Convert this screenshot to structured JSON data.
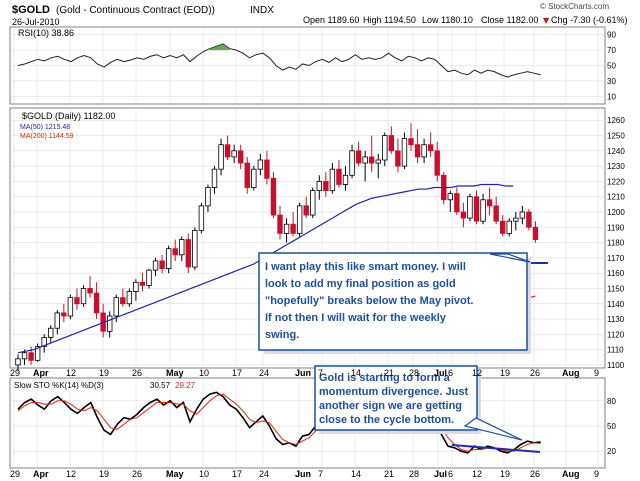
{
  "header": {
    "symbol": "$GOLD",
    "name": "(Gold - Continuous Contract (EOD))",
    "exchange": "INDX",
    "date": "26-Jul-2010",
    "quote_open": "Open 1189.60",
    "quote_high": "High 1194.50",
    "quote_low": "Low 1180.10",
    "quote_close": "Close 1182.00",
    "quote_chg": "Chg -7.30 (-0.61%)",
    "chg_arrow": "▼",
    "watermark": "© StockCharts.com"
  },
  "colors": {
    "bg": "#ffffff",
    "panel_border": "#808080",
    "grid": "#d8d8d8",
    "up_candle": "#000000",
    "down_candle": "#c8102e",
    "ma50": "#2222aa",
    "ma200": "#d42a1a",
    "callout_border": "#1f4e9a",
    "trend_line": "#1f2fa8"
  },
  "rsi_panel": {
    "label": "RSI(10) 38.86",
    "ticks": [
      "90",
      "70",
      "50",
      "30",
      "10"
    ]
  },
  "price_panel": {
    "label": "$GOLD (Daily) 1182.00",
    "ma50_label": "MA(50) 1215.48",
    "ma200_label": "MA(200) 1144.59",
    "ticks": [
      "1260",
      "1250",
      "1240",
      "1230",
      "1220",
      "1210",
      "1200",
      "1190",
      "1180",
      "1170",
      "1160",
      "1150",
      "1140",
      "1130",
      "1120",
      "1110",
      "1100"
    ]
  },
  "x_axis": {
    "labels": [
      "29",
      "Apr",
      "12",
      "19",
      "26",
      "May",
      "10",
      "17",
      "24",
      "Jun",
      "7",
      "14",
      "21",
      "28",
      "Jul",
      "6",
      "12",
      "19",
      "26",
      "Aug",
      "9"
    ]
  },
  "sto_panel": {
    "label": "Slow STO %K(14) %D(3)",
    "k_value": "30.57",
    "d_value": "29.27",
    "ticks": [
      "80",
      "50",
      "20"
    ]
  },
  "annotations": {
    "callout1": [
      "I want play this like smart money. I will",
      "look to add my final position as gold",
      "\"hopefully\" breaks below the May pivot.",
      "If not then I will wait for the weekly",
      "swing."
    ],
    "callout2": [
      "Gold is starting to form a",
      "momentum divergence. Just",
      "another sign we are getting",
      "close to the cycle bottom."
    ]
  },
  "chart_data": {
    "type": "candlestick",
    "title": "$GOLD (Gold - Continuous Contract (EOD)) INDX",
    "ylim": [
      1100,
      1268
    ],
    "candles": [
      {
        "o": 1100,
        "h": 1107,
        "l": 1096,
        "c": 1104
      },
      {
        "o": 1104,
        "h": 1110,
        "l": 1100,
        "c": 1108
      },
      {
        "o": 1108,
        "h": 1112,
        "l": 1100,
        "c": 1103
      },
      {
        "o": 1103,
        "h": 1114,
        "l": 1102,
        "c": 1112
      },
      {
        "o": 1112,
        "h": 1120,
        "l": 1108,
        "c": 1118
      },
      {
        "o": 1118,
        "h": 1126,
        "l": 1114,
        "c": 1124
      },
      {
        "o": 1124,
        "h": 1136,
        "l": 1120,
        "c": 1134
      },
      {
        "o": 1134,
        "h": 1140,
        "l": 1128,
        "c": 1132
      },
      {
        "o": 1132,
        "h": 1146,
        "l": 1130,
        "c": 1144
      },
      {
        "o": 1144,
        "h": 1150,
        "l": 1136,
        "c": 1140
      },
      {
        "o": 1140,
        "h": 1152,
        "l": 1138,
        "c": 1150
      },
      {
        "o": 1150,
        "h": 1158,
        "l": 1144,
        "c": 1147
      },
      {
        "o": 1147,
        "h": 1154,
        "l": 1130,
        "c": 1134
      },
      {
        "o": 1134,
        "h": 1140,
        "l": 1118,
        "c": 1122
      },
      {
        "o": 1122,
        "h": 1135,
        "l": 1118,
        "c": 1132
      },
      {
        "o": 1132,
        "h": 1146,
        "l": 1128,
        "c": 1144
      },
      {
        "o": 1144,
        "h": 1150,
        "l": 1138,
        "c": 1140
      },
      {
        "o": 1140,
        "h": 1150,
        "l": 1138,
        "c": 1148
      },
      {
        "o": 1148,
        "h": 1156,
        "l": 1142,
        "c": 1154
      },
      {
        "o": 1154,
        "h": 1160,
        "l": 1148,
        "c": 1152
      },
      {
        "o": 1152,
        "h": 1163,
        "l": 1150,
        "c": 1162
      },
      {
        "o": 1162,
        "h": 1170,
        "l": 1158,
        "c": 1168
      },
      {
        "o": 1168,
        "h": 1172,
        "l": 1160,
        "c": 1163
      },
      {
        "o": 1163,
        "h": 1178,
        "l": 1160,
        "c": 1176
      },
      {
        "o": 1176,
        "h": 1182,
        "l": 1168,
        "c": 1172
      },
      {
        "o": 1172,
        "h": 1184,
        "l": 1168,
        "c": 1182
      },
      {
        "o": 1182,
        "h": 1186,
        "l": 1160,
        "c": 1164
      },
      {
        "o": 1164,
        "h": 1190,
        "l": 1162,
        "c": 1188
      },
      {
        "o": 1188,
        "h": 1206,
        "l": 1186,
        "c": 1204
      },
      {
        "o": 1204,
        "h": 1218,
        "l": 1200,
        "c": 1216
      },
      {
        "o": 1216,
        "h": 1230,
        "l": 1212,
        "c": 1228
      },
      {
        "o": 1228,
        "h": 1248,
        "l": 1224,
        "c": 1244
      },
      {
        "o": 1244,
        "h": 1250,
        "l": 1234,
        "c": 1236
      },
      {
        "o": 1236,
        "h": 1244,
        "l": 1232,
        "c": 1240
      },
      {
        "o": 1240,
        "h": 1244,
        "l": 1228,
        "c": 1232
      },
      {
        "o": 1232,
        "h": 1236,
        "l": 1212,
        "c": 1216
      },
      {
        "o": 1216,
        "h": 1230,
        "l": 1214,
        "c": 1228
      },
      {
        "o": 1228,
        "h": 1238,
        "l": 1224,
        "c": 1234
      },
      {
        "o": 1234,
        "h": 1240,
        "l": 1218,
        "c": 1222
      },
      {
        "o": 1222,
        "h": 1226,
        "l": 1196,
        "c": 1198
      },
      {
        "o": 1198,
        "h": 1204,
        "l": 1182,
        "c": 1186
      },
      {
        "o": 1186,
        "h": 1196,
        "l": 1180,
        "c": 1192
      },
      {
        "o": 1192,
        "h": 1200,
        "l": 1184,
        "c": 1186
      },
      {
        "o": 1186,
        "h": 1206,
        "l": 1184,
        "c": 1204
      },
      {
        "o": 1204,
        "h": 1210,
        "l": 1196,
        "c": 1198
      },
      {
        "o": 1198,
        "h": 1216,
        "l": 1196,
        "c": 1214
      },
      {
        "o": 1214,
        "h": 1224,
        "l": 1208,
        "c": 1220
      },
      {
        "o": 1220,
        "h": 1226,
        "l": 1210,
        "c": 1214
      },
      {
        "o": 1214,
        "h": 1232,
        "l": 1212,
        "c": 1228
      },
      {
        "o": 1228,
        "h": 1234,
        "l": 1216,
        "c": 1218
      },
      {
        "o": 1218,
        "h": 1230,
        "l": 1214,
        "c": 1224
      },
      {
        "o": 1224,
        "h": 1244,
        "l": 1222,
        "c": 1240
      },
      {
        "o": 1240,
        "h": 1246,
        "l": 1230,
        "c": 1232
      },
      {
        "o": 1232,
        "h": 1240,
        "l": 1220,
        "c": 1236
      },
      {
        "o": 1236,
        "h": 1250,
        "l": 1226,
        "c": 1232
      },
      {
        "o": 1232,
        "h": 1238,
        "l": 1222,
        "c": 1234
      },
      {
        "o": 1234,
        "h": 1252,
        "l": 1230,
        "c": 1250
      },
      {
        "o": 1250,
        "h": 1256,
        "l": 1238,
        "c": 1240
      },
      {
        "o": 1240,
        "h": 1248,
        "l": 1226,
        "c": 1230
      },
      {
        "o": 1230,
        "h": 1252,
        "l": 1228,
        "c": 1248
      },
      {
        "o": 1248,
        "h": 1258,
        "l": 1240,
        "c": 1244
      },
      {
        "o": 1244,
        "h": 1254,
        "l": 1232,
        "c": 1236
      },
      {
        "o": 1236,
        "h": 1248,
        "l": 1232,
        "c": 1244
      },
      {
        "o": 1244,
        "h": 1252,
        "l": 1236,
        "c": 1240
      },
      {
        "o": 1240,
        "h": 1246,
        "l": 1220,
        "c": 1224
      },
      {
        "o": 1224,
        "h": 1226,
        "l": 1205,
        "c": 1208
      },
      {
        "o": 1208,
        "h": 1214,
        "l": 1200,
        "c": 1212
      },
      {
        "o": 1212,
        "h": 1216,
        "l": 1198,
        "c": 1200
      },
      {
        "o": 1200,
        "h": 1206,
        "l": 1190,
        "c": 1196
      },
      {
        "o": 1196,
        "h": 1212,
        "l": 1194,
        "c": 1210
      },
      {
        "o": 1210,
        "h": 1214,
        "l": 1192,
        "c": 1194
      },
      {
        "o": 1194,
        "h": 1212,
        "l": 1192,
        "c": 1208
      },
      {
        "o": 1208,
        "h": 1216,
        "l": 1198,
        "c": 1204
      },
      {
        "o": 1204,
        "h": 1210,
        "l": 1192,
        "c": 1194
      },
      {
        "o": 1194,
        "h": 1198,
        "l": 1184,
        "c": 1186
      },
      {
        "o": 1186,
        "h": 1196,
        "l": 1184,
        "c": 1194
      },
      {
        "o": 1194,
        "h": 1200,
        "l": 1188,
        "c": 1196
      },
      {
        "o": 1196,
        "h": 1204,
        "l": 1192,
        "c": 1200
      },
      {
        "o": 1200,
        "h": 1202,
        "l": 1188,
        "c": 1190
      },
      {
        "o": 1190,
        "h": 1194,
        "l": 1180,
        "c": 1182
      }
    ],
    "ma50": [
      1108,
      1109,
      1110,
      1112,
      1114,
      1116,
      1118,
      1120,
      1122,
      1124,
      1126,
      1128,
      1130,
      1132,
      1134,
      1136,
      1138,
      1140,
      1142,
      1144,
      1146,
      1148,
      1150,
      1152,
      1154,
      1156,
      1158,
      1160,
      1162,
      1164,
      1166,
      1169,
      1172,
      1175,
      1178,
      1181,
      1184,
      1187,
      1190,
      1193,
      1196,
      1199,
      1202,
      1205,
      1207,
      1209,
      1210,
      1211,
      1212,
      1213,
      1214,
      1215,
      1215,
      1216,
      1216,
      1216,
      1217,
      1217,
      1217,
      1218,
      1218,
      1218,
      1217,
      1217
    ],
    "ma200": [
      1128,
      1129,
      1130,
      1132,
      1134,
      1136,
      1138,
      1140,
      1142,
      1143,
      1144,
      1145
    ],
    "support_level": 1168,
    "rsi": [
      50,
      52,
      55,
      58,
      56,
      60,
      62,
      58,
      55,
      60,
      63,
      60,
      52,
      48,
      54,
      58,
      55,
      57,
      60,
      58,
      62,
      64,
      60,
      63,
      60,
      64,
      55,
      62,
      68,
      72,
      75,
      78,
      72,
      70,
      66,
      60,
      64,
      66,
      60,
      50,
      44,
      48,
      45,
      52,
      50,
      55,
      58,
      54,
      60,
      55,
      58,
      64,
      58,
      60,
      58,
      60,
      66,
      60,
      56,
      62,
      60,
      56,
      60,
      58,
      50,
      42,
      44,
      40,
      38,
      44,
      40,
      44,
      42,
      38,
      35,
      38,
      40,
      42,
      40,
      38
    ],
    "sto_k": [
      70,
      78,
      82,
      75,
      70,
      80,
      85,
      78,
      70,
      65,
      72,
      78,
      60,
      45,
      40,
      52,
      60,
      58,
      64,
      72,
      78,
      82,
      75,
      80,
      72,
      78,
      55,
      70,
      82,
      88,
      90,
      85,
      75,
      70,
      60,
      48,
      55,
      62,
      50,
      35,
      28,
      30,
      26,
      38,
      40,
      50,
      58,
      52,
      66,
      60,
      65,
      75,
      70,
      72,
      68,
      72,
      80,
      70,
      60,
      66,
      60,
      52,
      58,
      55,
      40,
      26,
      24,
      20,
      18,
      26,
      22,
      26,
      24,
      20,
      18,
      22,
      28,
      32,
      30,
      31
    ],
    "sto_d": [
      68,
      74,
      78,
      78,
      76,
      76,
      80,
      80,
      76,
      70,
      68,
      72,
      68,
      58,
      48,
      46,
      52,
      58,
      60,
      66,
      72,
      78,
      78,
      78,
      76,
      76,
      68,
      64,
      72,
      80,
      86,
      88,
      82,
      76,
      68,
      58,
      54,
      56,
      54,
      44,
      34,
      30,
      28,
      32,
      36,
      44,
      52,
      54,
      60,
      60,
      62,
      68,
      70,
      70,
      70,
      70,
      74,
      72,
      66,
      64,
      62,
      56,
      56,
      55,
      48,
      36,
      28,
      22,
      20,
      22,
      22,
      24,
      24,
      22,
      20,
      20,
      24,
      28,
      30,
      29
    ]
  }
}
